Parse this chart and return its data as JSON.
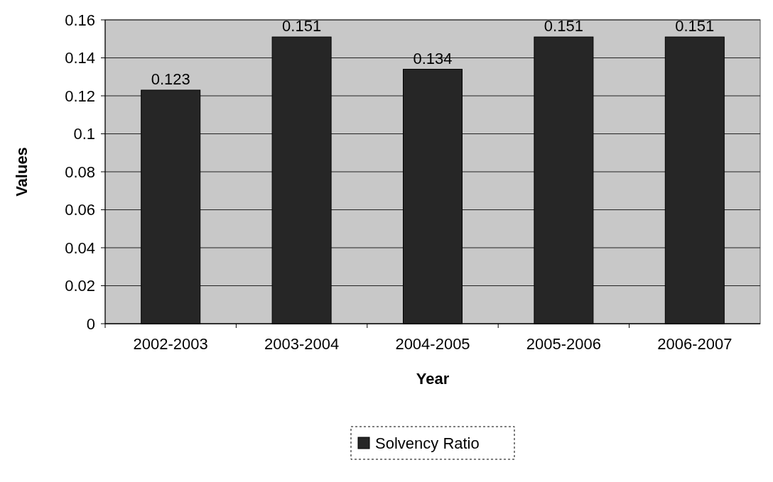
{
  "chart_data": {
    "type": "bar",
    "xlabel": "Year",
    "ylabel": "Values",
    "categories": [
      "2002-2003",
      "2003-2004",
      "2004-2005",
      "2005-2006",
      "2006-2007"
    ],
    "series": [
      {
        "name": "Solvency Ratio",
        "color": "#262626",
        "values": [
          0.123,
          0.151,
          0.134,
          0.151,
          0.151
        ]
      }
    ],
    "ylim": [
      0,
      0.16
    ],
    "yticks": [
      0,
      0.02,
      0.04,
      0.06,
      0.08,
      0.1,
      0.12,
      0.14,
      0.16
    ],
    "grid": "y",
    "legend": "bottom",
    "data_labels": true
  }
}
